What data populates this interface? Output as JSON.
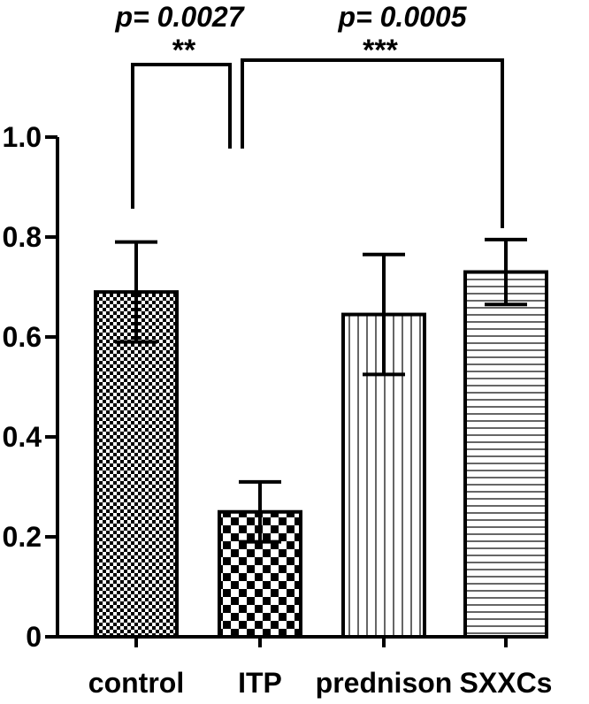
{
  "chart_data": {
    "type": "bar",
    "title": "",
    "xlabel": "",
    "ylabel": "",
    "categories": [
      "control",
      "ITP",
      "prednison",
      "SXXCs"
    ],
    "values": [
      0.69,
      0.25,
      0.645,
      0.73
    ],
    "error": [
      0.1,
      0.06,
      0.12,
      0.065
    ],
    "ylim": [
      0,
      1.0
    ],
    "y_ticks": [
      0,
      0.2,
      0.4,
      0.6,
      0.8,
      1.0
    ],
    "y_tick_labels": [
      "0",
      "0.2",
      "0.4",
      "0.6",
      "0.8",
      "1.0"
    ],
    "bar_patterns": [
      "fine-checker",
      "coarse-checker",
      "vertical-lines",
      "horizontal-lines"
    ],
    "grid": false,
    "legend": "none",
    "comparisons": [
      {
        "from": "control",
        "to": "ITP",
        "stars": "**",
        "p_label": "p= 0.0027"
      },
      {
        "from": "ITP",
        "to": "SXXCs",
        "stars": "***",
        "p_label": "p= 0.0005"
      }
    ],
    "colors": {
      "ink": "#000000",
      "background": "#ffffff"
    }
  }
}
